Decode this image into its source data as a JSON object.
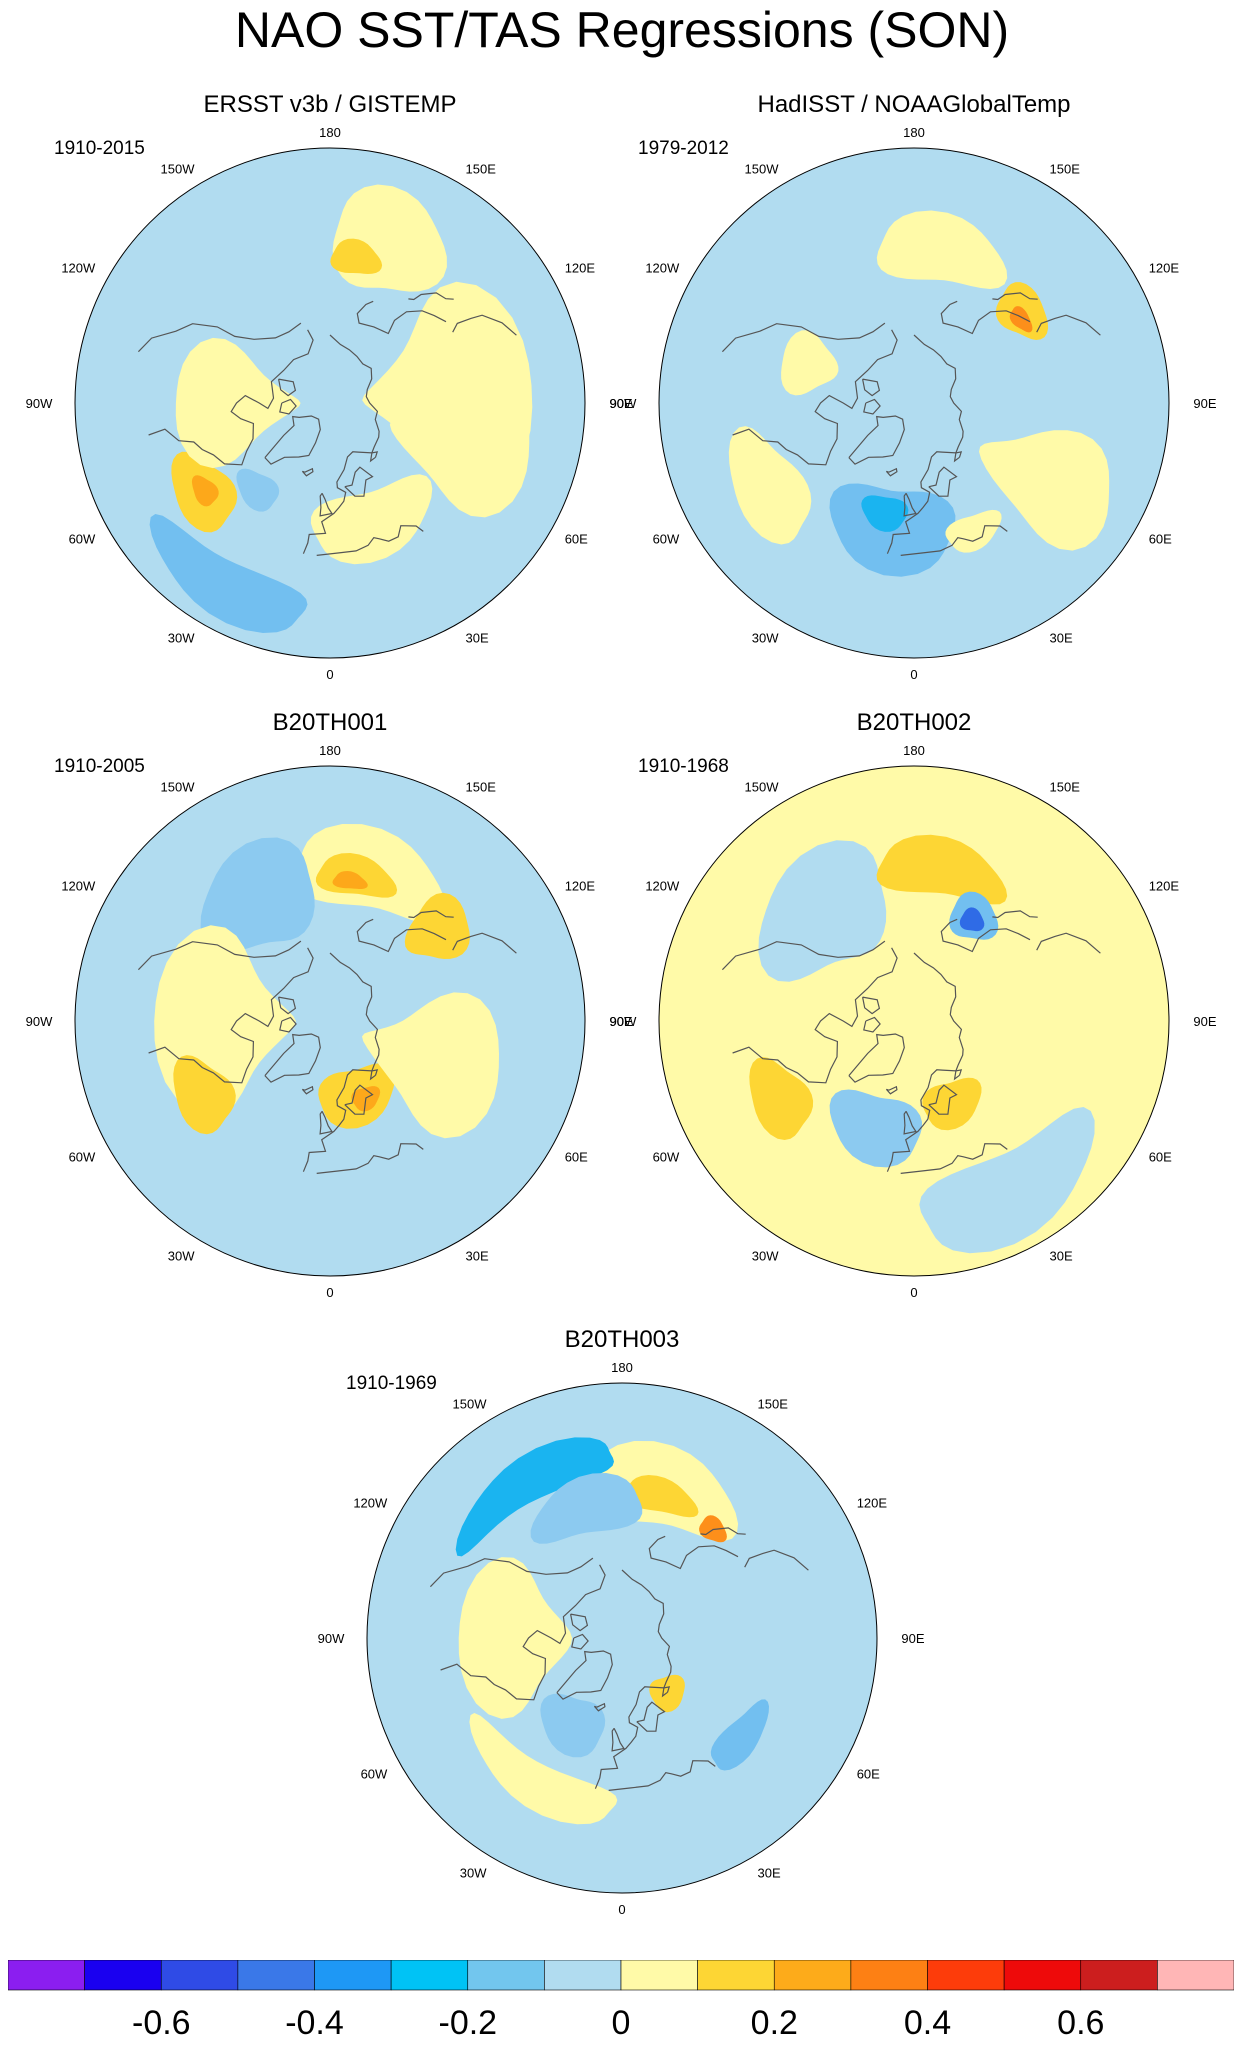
{
  "title": "NAO SST/TAS Regressions (SON)",
  "palette": {
    "land_outline": "#555555",
    "missing": "#ffffff"
  },
  "longitude_labels": [
    "180",
    "150E",
    "120E",
    "90E",
    "60E",
    "30E",
    "0",
    "30W",
    "60W",
    "90W",
    "120W",
    "150W"
  ],
  "panels": [
    {
      "title": "ERSST v3b / GISTEMP",
      "years": "1910-2015",
      "base_color": "#b1dcf0",
      "blobs": [
        {
          "lon": 160,
          "lat": 30,
          "rlat": 18,
          "rlon": 20,
          "color": "#fffaa8"
        },
        {
          "lon": 170,
          "lat": 38,
          "rlat": 6,
          "rlon": 10,
          "color": "#fdd634"
        },
        {
          "lon": 95,
          "lat": 45,
          "rlat": 30,
          "rlon": 40,
          "color": "#fffaa8"
        },
        {
          "lon": 75,
          "lat": 40,
          "rlat": 25,
          "rlon": 25,
          "color": "#fffaa8"
        },
        {
          "lon": -55,
          "lat": 35,
          "rlat": 10,
          "rlon": 15,
          "color": "#fdd634"
        },
        {
          "lon": -55,
          "lat": 36,
          "rlat": 4,
          "rlon": 6,
          "color": "#fda81a"
        },
        {
          "lon": -40,
          "lat": 50,
          "rlat": 6,
          "rlon": 12,
          "color": "#8ccaf0"
        },
        {
          "lon": -30,
          "lat": 15,
          "rlat": 10,
          "rlon": 25,
          "color": "#72bff0"
        },
        {
          "lon": -90,
          "lat": 55,
          "rlat": 22,
          "rlon": 30,
          "color": "#fffaa8"
        },
        {
          "lon": 20,
          "lat": 45,
          "rlat": 12,
          "rlon": 30,
          "color": "#fffaa8"
        }
      ]
    },
    {
      "title": "HadISST / NOAAGlobalTemp",
      "years": "1979-2012",
      "base_color": "#b1dcf0",
      "blobs": [
        {
          "lon": 170,
          "lat": 35,
          "rlat": 12,
          "rlon": 25,
          "color": "#fffaa8"
        },
        {
          "lon": 130,
          "lat": 40,
          "rlat": 8,
          "rlon": 12,
          "color": "#fdd634"
        },
        {
          "lon": 128,
          "lat": 42,
          "rlat": 3,
          "rlon": 6,
          "color": "#fd8f1a"
        },
        {
          "lon": 60,
          "lat": 35,
          "rlat": 25,
          "rlon": 18,
          "color": "#fffaa8"
        },
        {
          "lon": -10,
          "lat": 45,
          "rlat": 15,
          "rlon": 30,
          "color": "#72bff0"
        },
        {
          "lon": -15,
          "lat": 50,
          "rlat": 6,
          "rlon": 12,
          "color": "#1ab4f0"
        },
        {
          "lon": -60,
          "lat": 30,
          "rlat": 12,
          "rlon": 20,
          "color": "#fffaa8"
        },
        {
          "lon": -110,
          "lat": 50,
          "rlat": 10,
          "rlon": 15,
          "color": "#fffaa8"
        },
        {
          "lon": 25,
          "lat": 40,
          "rlat": 6,
          "rlon": 12,
          "color": "#fffaa8"
        }
      ]
    },
    {
      "title": "B20TH001",
      "years": "1910-2005",
      "base_color": "#b1dcf0",
      "blobs": [
        {
          "lon": 165,
          "lat": 35,
          "rlat": 14,
          "rlon": 30,
          "color": "#fffaa8"
        },
        {
          "lon": 170,
          "lat": 38,
          "rlat": 7,
          "rlon": 16,
          "color": "#fdd634"
        },
        {
          "lon": 172,
          "lat": 40,
          "rlat": 3,
          "rlon": 7,
          "color": "#fda81a"
        },
        {
          "lon": 130,
          "lat": 40,
          "rlat": 12,
          "rlon": 12,
          "color": "#fdd634"
        },
        {
          "lon": -150,
          "lat": 40,
          "rlat": 18,
          "rlon": 25,
          "color": "#8ccaf0"
        },
        {
          "lon": -90,
          "lat": 50,
          "rlat": 25,
          "rlon": 40,
          "color": "#fffaa8"
        },
        {
          "lon": -60,
          "lat": 38,
          "rlat": 10,
          "rlon": 15,
          "color": "#fdd634"
        },
        {
          "lon": 20,
          "lat": 62,
          "rlat": 10,
          "rlon": 30,
          "color": "#fdd634"
        },
        {
          "lon": 25,
          "lat": 60,
          "rlat": 4,
          "rlon": 10,
          "color": "#fda81a"
        },
        {
          "lon": 70,
          "lat": 50,
          "rlat": 25,
          "rlon": 30,
          "color": "#fffaa8"
        }
      ]
    },
    {
      "title": "B20TH002",
      "years": "1910-1968",
      "base_color": "#fffaa8",
      "blobs": [
        {
          "lon": -140,
          "lat": 40,
          "rlat": 20,
          "rlon": 30,
          "color": "#b1dcf0"
        },
        {
          "lon": 170,
          "lat": 35,
          "rlat": 10,
          "rlon": 25,
          "color": "#fdd634"
        },
        {
          "lon": 150,
          "lat": 48,
          "rlat": 8,
          "rlon": 12,
          "color": "#72bff0"
        },
        {
          "lon": 150,
          "lat": 49,
          "rlat": 4,
          "rlon": 6,
          "color": "#2f6be6"
        },
        {
          "lon": -20,
          "lat": 50,
          "rlat": 12,
          "rlon": 25,
          "color": "#8ccaf0"
        },
        {
          "lon": 30,
          "lat": 20,
          "rlat": 15,
          "rlon": 30,
          "color": "#b1dcf0"
        },
        {
          "lon": -60,
          "lat": 35,
          "rlat": 10,
          "rlon": 15,
          "color": "#fdd634"
        },
        {
          "lon": 25,
          "lat": 58,
          "rlat": 8,
          "rlon": 20,
          "color": "#fdd634"
        }
      ]
    },
    {
      "title": "B20TH003",
      "years": "1910-1969",
      "base_color": "#b1dcf0",
      "blobs": [
        {
          "lon": 165,
          "lat": 35,
          "rlat": 14,
          "rlon": 30,
          "color": "#fffaa8"
        },
        {
          "lon": 165,
          "lat": 38,
          "rlat": 6,
          "rlon": 15,
          "color": "#fdd634"
        },
        {
          "lon": 140,
          "lat": 40,
          "rlat": 4,
          "rlon": 6,
          "color": "#fd8f1a"
        },
        {
          "lon": -150,
          "lat": 25,
          "rlat": 8,
          "rlon": 30,
          "color": "#1ab4f0"
        },
        {
          "lon": -165,
          "lat": 42,
          "rlat": 10,
          "rlon": 25,
          "color": "#8ccaf0"
        },
        {
          "lon": -90,
          "lat": 50,
          "rlat": 20,
          "rlon": 35,
          "color": "#fffaa8"
        },
        {
          "lon": -30,
          "lat": 55,
          "rlat": 10,
          "rlon": 20,
          "color": "#8ccaf0"
        },
        {
          "lon": 40,
          "lat": 65,
          "rlat": 6,
          "rlon": 15,
          "color": "#fdd634"
        },
        {
          "lon": -30,
          "lat": 30,
          "rlat": 8,
          "rlon": 30,
          "color": "#fffaa8"
        },
        {
          "lon": 50,
          "lat": 35,
          "rlat": 6,
          "rlon": 15,
          "color": "#72bff0"
        }
      ]
    }
  ],
  "colorbar": {
    "colors": [
      "#8b1ef0",
      "#1a00f0",
      "#2f4be6",
      "#3a78e8",
      "#1e98f5",
      "#00c3f5",
      "#72c6ee",
      "#b1dcf0",
      "#fffaa8",
      "#fdd634",
      "#fdab1a",
      "#fd8014",
      "#fd3c0a",
      "#ee0a0a",
      "#cc1e1e",
      "#ffb6b6"
    ],
    "tick_labels": [
      "-0.6",
      "-0.4",
      "-0.2",
      "0",
      "0.2",
      "0.4",
      "0.6"
    ],
    "tick_boundaries": [
      2,
      4,
      6,
      8,
      10,
      12,
      14
    ]
  }
}
